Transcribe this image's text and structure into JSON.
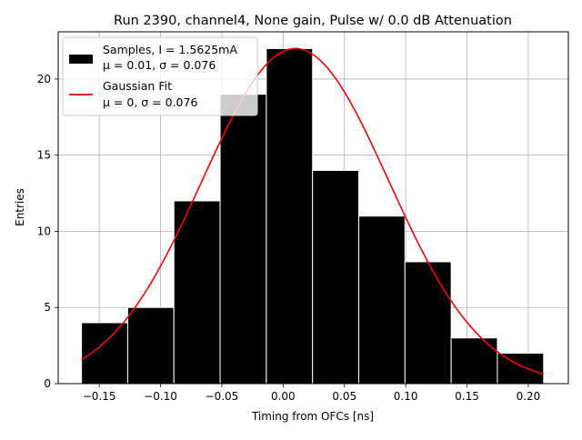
{
  "chart_data": {
    "type": "bar",
    "title": "Run 2390, channel4, None gain, Pulse w/ 0.0 dB Attenuation",
    "xlabel": "Timing from OFCs [ns]",
    "ylabel": "Entries",
    "xlim": [
      -0.1835,
      0.2327
    ],
    "ylim": [
      0,
      23.1
    ],
    "grid": true,
    "legend_position": "upper-left",
    "x_ticks": [
      -0.15,
      -0.1,
      -0.05,
      0.0,
      0.05,
      0.1,
      0.15,
      0.2
    ],
    "x_tick_labels": [
      "−0.15",
      "−0.10",
      "−0.05",
      "0.00",
      "0.05",
      "0.10",
      "0.15",
      "0.20"
    ],
    "y_ticks": [
      0,
      5,
      10,
      15,
      20
    ],
    "y_tick_labels": [
      "0",
      "5",
      "10",
      "15",
      "20"
    ],
    "bins": [
      {
        "x0": -0.1645,
        "x1": -0.1268,
        "count": 4
      },
      {
        "x0": -0.1268,
        "x1": -0.0891,
        "count": 5
      },
      {
        "x0": -0.0891,
        "x1": -0.0514,
        "count": 12
      },
      {
        "x0": -0.0514,
        "x1": -0.0137,
        "count": 19
      },
      {
        "x0": -0.0137,
        "x1": 0.024,
        "count": 22
      },
      {
        "x0": 0.024,
        "x1": 0.0617,
        "count": 14
      },
      {
        "x0": 0.0617,
        "x1": 0.0994,
        "count": 11
      },
      {
        "x0": 0.0994,
        "x1": 0.1371,
        "count": 8
      },
      {
        "x0": 0.1371,
        "x1": 0.1748,
        "count": 3
      },
      {
        "x0": 0.1748,
        "x1": 0.2125,
        "count": 2
      }
    ],
    "series": [
      {
        "name": "Samples, I = 1.5625mA",
        "stats": "μ = 0.01, σ = 0.076",
        "kind": "histogram",
        "color": "#000000"
      },
      {
        "name": "Gaussian Fit",
        "stats": "μ = 0, σ = 0.076",
        "kind": "line",
        "color": "#ff0000",
        "amplitude": 22.0,
        "mu": 0.01,
        "sigma": 0.076,
        "x_range": [
          -0.1645,
          0.2125
        ]
      }
    ]
  }
}
